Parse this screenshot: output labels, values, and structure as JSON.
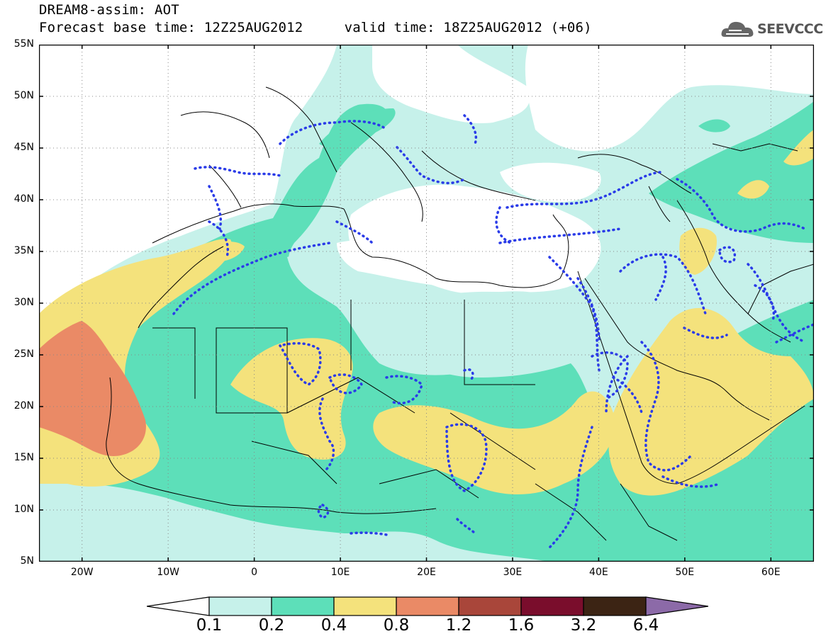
{
  "title": {
    "line1": "DREAM8-assim: AOT",
    "line2": "Forecast base time: 12Z25AUG2012     valid time: 18Z25AUG2012 (+06)"
  },
  "logo": {
    "text": "SEEVCCC",
    "icon": "cloud-icon"
  },
  "map": {
    "lon_range": [
      -25,
      65
    ],
    "lat_range": [
      5,
      55
    ],
    "lat_ticks": [
      {
        "value": 55,
        "label": "55N"
      },
      {
        "value": 50,
        "label": "50N"
      },
      {
        "value": 45,
        "label": "45N"
      },
      {
        "value": 40,
        "label": "40N"
      },
      {
        "value": 35,
        "label": "35N"
      },
      {
        "value": 30,
        "label": "30N"
      },
      {
        "value": 25,
        "label": "25N"
      },
      {
        "value": 20,
        "label": "20N"
      },
      {
        "value": 15,
        "label": "15N"
      },
      {
        "value": 10,
        "label": "10N"
      },
      {
        "value": 5,
        "label": "5N"
      }
    ],
    "lon_ticks": [
      {
        "value": -20,
        "label": "20W"
      },
      {
        "value": -10,
        "label": "10W"
      },
      {
        "value": 0,
        "label": "0"
      },
      {
        "value": 10,
        "label": "10E"
      },
      {
        "value": 20,
        "label": "20E"
      },
      {
        "value": 30,
        "label": "30E"
      },
      {
        "value": 40,
        "label": "40E"
      },
      {
        "value": 50,
        "label": "50E"
      },
      {
        "value": 60,
        "label": "60E"
      }
    ],
    "grid": "dotted",
    "land_outline_color": "#000000",
    "contour_color": "#2a3be8"
  },
  "colorbar": {
    "levels": [
      "0.1",
      "0.2",
      "0.4",
      "0.8",
      "1.2",
      "1.6",
      "3.2",
      "6.4"
    ],
    "colors": [
      "#ffffff",
      "#c6f1ea",
      "#5ddfb9",
      "#f4e27c",
      "#ea8a66",
      "#a9463a",
      "#7a0d2c",
      "#3c2414",
      "#8c6aa8"
    ]
  }
}
